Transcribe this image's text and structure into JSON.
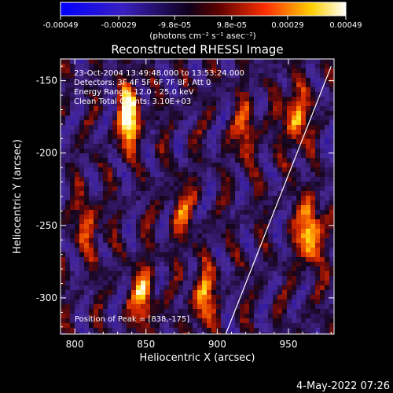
{
  "colorbar": {
    "ticks": [
      "-0.00049",
      "-0.00029",
      "-9.8e-05",
      "9.8e-05",
      "0.00029",
      "0.00049"
    ],
    "tick_values": [
      -0.00049,
      -0.00029,
      -9.8e-05,
      9.8e-05,
      0.00029,
      0.00049
    ],
    "range": [
      -0.00049,
      0.00049
    ],
    "unit_label": "(photons cm⁻² s⁻¹ asec⁻²)",
    "colormap": [
      "#0000ff",
      "#4b0082",
      "#000000",
      "#8b0000",
      "#ff4500",
      "#ffff00",
      "#ffffff"
    ]
  },
  "chart_data": {
    "type": "heatmap",
    "title": "Reconstructed RHESSI Image",
    "xlabel": "Heliocentric X (arcsec)",
    "ylabel": "Heliocentric Y (arcsec)",
    "xlim": [
      790,
      982
    ],
    "ylim": [
      -325,
      -135
    ],
    "xticks": [
      800,
      850,
      900,
      950
    ],
    "yticks": [
      -300,
      -250,
      -200,
      -150
    ],
    "info_lines": [
      "23-Oct-2004 13:49:48.000 to 13:53:24.000",
      "Detectors: 3F 4F 5F 6F 7F 8F, Att 0",
      "Energy Range: 12.0 - 25.0 keV",
      "Clean     Total Counts: 3.10E+03"
    ],
    "peak_label": "Position of Peak = [838,-175]",
    "limb_line": [
      [
        906,
        -325
      ],
      [
        980,
        -140
      ]
    ],
    "bright_sources": [
      {
        "x": 838,
        "y": -175,
        "level": 1.0
      },
      {
        "x": 965,
        "y": -255,
        "level": 0.95
      },
      {
        "x": 955,
        "y": -175,
        "level": 0.75
      },
      {
        "x": 848,
        "y": -300,
        "level": 0.7
      },
      {
        "x": 890,
        "y": -300,
        "level": 0.65
      },
      {
        "x": 810,
        "y": -250,
        "level": 0.5
      },
      {
        "x": 875,
        "y": -240,
        "level": 0.45
      },
      {
        "x": 920,
        "y": -185,
        "level": 0.5
      }
    ]
  },
  "timestamp": "4-May-2022 07:26"
}
